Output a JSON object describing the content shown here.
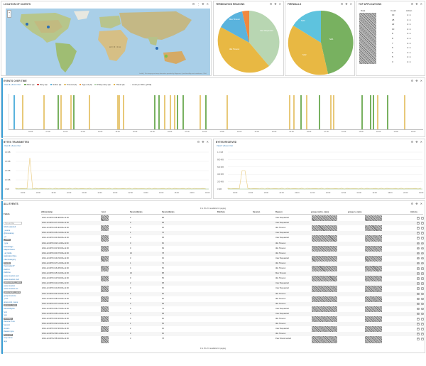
{
  "panels": {
    "location": {
      "title": "LOCATION OF CLIENTS",
      "map_text": "AFRICA",
      "attribution": "Leaflet | Tiles Imagery and map information provided by Mapquest, OpenStreetMap and contributors, ODbL"
    },
    "termination": {
      "title": "TERMINATION REASONS"
    },
    "firewalls": {
      "title": "FIREWALLS"
    },
    "top_applications": {
      "title": "TOP APPLICATIONS",
      "col1": "Data",
      "col2": "Count",
      "col3": "Action",
      "counts": [
        "30",
        "28",
        "22",
        "10",
        "8",
        "8",
        "7",
        "6",
        "6",
        "5",
        "3"
      ]
    },
    "events_over_time": {
      "title": "EVENTS OVER TIME",
      "sublabel": "View ▾  | Zoom Out",
      "legend": [
        "Allow (0)",
        "Deny (0)",
        "Notice (0)",
        "Timeout (0)",
        "Age-out (0)",
        "Policy-deny (0)",
        "Threat (0)",
        "... count per 30m | [0.5h]"
      ],
      "ticks": [
        "04:00",
        "07:00",
        "10:00",
        "13:00",
        "16:00",
        "19:00",
        "22:00",
        "01:00",
        "04:00",
        "07:00",
        "10:00",
        "13:00",
        "16:00",
        "19:00",
        "22:00",
        "01:00",
        "04:00",
        "07:00",
        "10:00",
        "13:00",
        "16:00",
        "19:00",
        "22:00"
      ]
    },
    "bytes_transmitted": {
      "title": "BYTES TRANSMITTED",
      "sublabel": "View ▾  | Zoom Out",
      "yticks": [
        "40 MB",
        "30 MB",
        "20 MB",
        "10 MB",
        "0 MB"
      ],
      "xticks": [
        "04:00",
        "10:00",
        "16:00",
        "22:00",
        "04:00",
        "10:00",
        "16:00",
        "22:00",
        "04:00",
        "10:00",
        "16:00",
        "22:00",
        "04:00"
      ]
    },
    "bytes_received": {
      "title": "BYTES RECEIVED",
      "sublabel": "View ▾  | Zoom Out",
      "yticks": [
        "1.0 GB",
        "800 MB",
        "600 MB",
        "400 MB",
        "200 MB",
        "0 MB"
      ],
      "xticks": [
        "04:00",
        "10:00",
        "16:00",
        "22:00",
        "04:00",
        "10:00",
        "16:00",
        "22:00",
        "04:00",
        "10:00",
        "16:00",
        "22:00",
        "04:00"
      ]
    },
    "all_events": {
      "title": "ALL EVENTS",
      "pager": "0 to 25 of 0 available for paging",
      "fields_label": "Fields",
      "fields_filter": "Type to filter",
      "columns": [
        "@timestamp",
        "host",
        "SessionBytes",
        "SessionBytes",
        "DstZone",
        "Session",
        "Reason",
        "group.contro_name",
        "group.rs_name",
        "Actions"
      ],
      "rows": [
        {
          "ts": "2014-12-09T13:28:48.000+11:00",
          "a": "2",
          "b": "88",
          "reason": "User Requested"
        },
        {
          "ts": "2014-12-09T13:27:22.000+11:00",
          "a": "0",
          "b": "58",
          "reason": "User Requested"
        },
        {
          "ts": "2014-12-09T13:25:40.000+11:00",
          "a": "0",
          "b": "62",
          "reason": "Idle Timeout"
        },
        {
          "ts": "2014-12-09T13:25:21.000+11:00",
          "a": "1",
          "b": "76",
          "reason": "User Requested"
        },
        {
          "ts": "2014-12-09T13:23:39.000+11:00",
          "a": "0",
          "b": "58",
          "reason": "User Requested"
        },
        {
          "ts": "2014-12-09T13:22:11.000+11:00",
          "a": "0",
          "b": "60",
          "reason": "Idle Timeout"
        },
        {
          "ts": "2014-12-09T13:21:56.000+11:00",
          "a": "0",
          "b": "84",
          "reason": "Idle Timeout"
        },
        {
          "ts": "2014-12-09T13:20:37.000+11:00",
          "a": "10",
          "b": "78",
          "reason": "Idle Timeout"
        },
        {
          "ts": "2014-12-09T13:19:23.000+11:00",
          "a": "3",
          "b": "62",
          "reason": "User Requested"
        },
        {
          "ts": "2014-12-09T13:17:12.000+11:00",
          "a": "1",
          "b": "74",
          "reason": "Idle Timeout"
        },
        {
          "ts": "2014-12-09T13:16:28.000+11:00",
          "a": "4",
          "b": "56",
          "reason": "Idle Timeout"
        },
        {
          "ts": "2014-12-09T13:15:31.000+11:00",
          "a": "16",
          "b": "88",
          "reason": "Max Timeout"
        },
        {
          "ts": "2014-12-09T13:13:53.000+11:00",
          "a": "0",
          "b": "56",
          "reason": "Idle Timeout"
        },
        {
          "ts": "2014-12-09T13:11:22.000+11:00",
          "a": "2",
          "b": "68",
          "reason": "User Requested"
        },
        {
          "ts": "2014-12-09T13:10:26.000+11:00",
          "a": "0",
          "b": "60",
          "reason": "User Requested"
        },
        {
          "ts": "2014-12-09T13:09:41.000+11:00",
          "a": "2",
          "b": "60",
          "reason": "Idle Timeout"
        },
        {
          "ts": "2014-12-09T13:08:01.000+11:00",
          "a": "5",
          "b": "60",
          "reason": "Idle Timeout"
        },
        {
          "ts": "2014-12-09T13:07:16.000+11:00",
          "a": "4",
          "b": "84",
          "reason": "Idle Timeout"
        },
        {
          "ts": "2014-12-09T13:06:27.000+11:00",
          "a": "0",
          "b": "74",
          "reason": "User Requested"
        },
        {
          "ts": "2014-12-09T13:05:12.000+11:00",
          "a": "0",
          "b": "58",
          "reason": "User Requested"
        },
        {
          "ts": "2014-12-09T13:03:32.000+11:00",
          "a": "0",
          "b": "60",
          "reason": "Idle Timeout"
        },
        {
          "ts": "2014-12-09T13:02:10.000+11:00",
          "a": "1",
          "b": "56",
          "reason": "Idle Timeout"
        },
        {
          "ts": "2014-12-09T13:01:56.000+11:00",
          "a": "2",
          "b": "62",
          "reason": "User Requested"
        },
        {
          "ts": "2014-12-09T12:59:11.000+11:00",
          "a": "0",
          "b": "60",
          "reason": "Idle Timeout"
        },
        {
          "ts": "2014-12-09T12:58:34.000+11:00",
          "a": "3",
          "b": "78",
          "reason": "Peer Disconnected"
        }
      ],
      "fields": [
        "All (0) selected",
        "_source",
        "@timestamp",
        "_id",
        "_index",
        "_type",
        "ActionFlags",
        "AdapterName",
        "_all_fields",
        "ApplicationType",
        "ClientCategory",
        "Config",
        "DestinationIP",
        "DstPort",
        "DstZone",
        "parse.location.sent",
        "parse.location.rcvd",
        "geoip.country_name",
        "parse.location",
        "parse.location.lon",
        "geoip.region_name",
        "geoip.timezone",
        "_host",
        "group.cont_name",
        "group.rs_name",
        "SessionBytes",
        "host",
        "type",
        "message",
        "Receive.Time",
        "Session",
        "version",
        "Reason.type",
        "SourceIP",
        "cosp.name",
        "tags"
      ]
    }
  },
  "colors": {
    "green": "#78b160",
    "tan": "#e8c979",
    "orange": "#f59d3f",
    "blue": "#5ab3dd",
    "sage": "#b8d6b2",
    "gold": "#e0b43e"
  }
}
